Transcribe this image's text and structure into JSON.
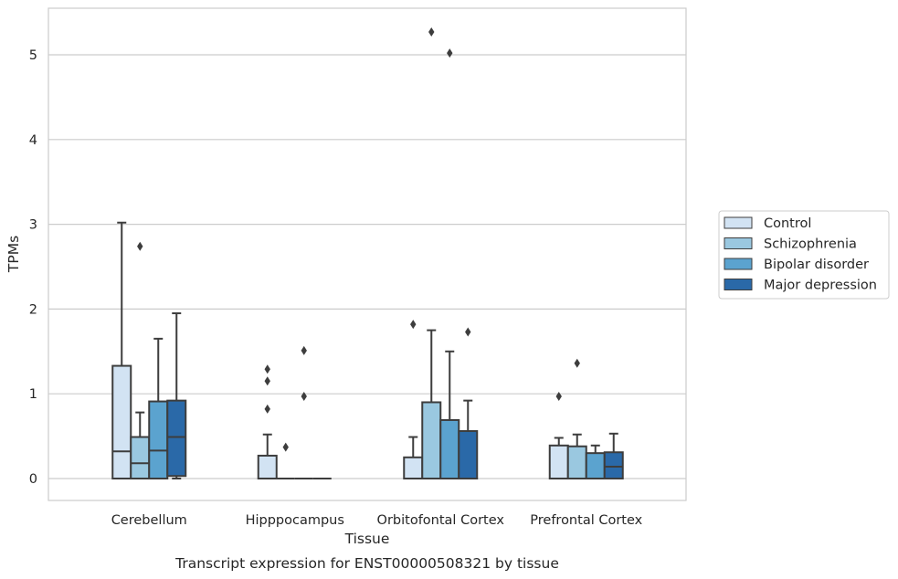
{
  "caption": "Transcript expression for ENST00000508321 by tissue",
  "chart_data": {
    "type": "box",
    "title": "",
    "xlabel": "Tissue",
    "ylabel": "TPMs",
    "categories": [
      "Cerebellum",
      "Hipppocampus",
      "Orbitofontal Cortex",
      "Prefrontal Cortex"
    ],
    "ylim": [
      -0.26,
      5.57
    ],
    "yticks": [
      0,
      1,
      2,
      3,
      4,
      5
    ],
    "grid": "horizontal",
    "legend_placement": "right",
    "series": [
      {
        "name": "Control",
        "color": "#d2e3f3",
        "boxes": [
          {
            "whislo": 0.0,
            "q1": 0.0,
            "med": 0.32,
            "q3": 1.33,
            "whishi": 3.02,
            "fliers": []
          },
          {
            "whislo": 0.0,
            "q1": 0.0,
            "med": 0.0,
            "q3": 0.27,
            "whishi": 0.52,
            "fliers": [
              0.82,
              1.15,
              1.29
            ]
          },
          {
            "whislo": 0.0,
            "q1": 0.0,
            "med": 0.0,
            "q3": 0.25,
            "whishi": 0.49,
            "fliers": [
              1.82
            ]
          },
          {
            "whislo": 0.0,
            "q1": 0.0,
            "med": 0.0,
            "q3": 0.39,
            "whishi": 0.48,
            "fliers": [
              0.97
            ]
          }
        ]
      },
      {
        "name": "Schizophrenia",
        "color": "#9ac8e0",
        "boxes": [
          {
            "whislo": 0.0,
            "q1": 0.0,
            "med": 0.18,
            "q3": 0.49,
            "whishi": 0.78,
            "fliers": [
              2.74
            ]
          },
          {
            "whislo": 0.0,
            "q1": 0.0,
            "med": 0.0,
            "q3": 0.0,
            "whishi": 0.0,
            "fliers": [
              0.37
            ]
          },
          {
            "whislo": 0.0,
            "q1": 0.0,
            "med": 0.0,
            "q3": 0.9,
            "whishi": 1.75,
            "fliers": [
              5.27
            ]
          },
          {
            "whislo": 0.0,
            "q1": 0.0,
            "med": 0.0,
            "q3": 0.38,
            "whishi": 0.52,
            "fliers": [
              1.36
            ]
          }
        ]
      },
      {
        "name": "Bipolar disorder",
        "color": "#5ba3cf",
        "boxes": [
          {
            "whislo": 0.0,
            "q1": 0.0,
            "med": 0.33,
            "q3": 0.91,
            "whishi": 1.65,
            "fliers": []
          },
          {
            "whislo": 0.0,
            "q1": 0.0,
            "med": 0.0,
            "q3": 0.0,
            "whishi": 0.0,
            "fliers": [
              0.97,
              1.51
            ]
          },
          {
            "whislo": 0.0,
            "q1": 0.0,
            "med": 0.0,
            "q3": 0.69,
            "whishi": 1.5,
            "fliers": [
              5.02
            ]
          },
          {
            "whislo": 0.0,
            "q1": 0.0,
            "med": 0.0,
            "q3": 0.3,
            "whishi": 0.39,
            "fliers": []
          }
        ]
      },
      {
        "name": "Major depression",
        "color": "#2a69a8",
        "boxes": [
          {
            "whislo": 0.0,
            "q1": 0.03,
            "med": 0.49,
            "q3": 0.92,
            "whishi": 1.95,
            "fliers": []
          },
          {
            "whislo": 0.0,
            "q1": 0.0,
            "med": 0.0,
            "q3": 0.0,
            "whishi": 0.0,
            "fliers": []
          },
          {
            "whislo": 0.0,
            "q1": 0.0,
            "med": 0.0,
            "q3": 0.56,
            "whishi": 0.92,
            "fliers": [
              1.73
            ]
          },
          {
            "whislo": 0.0,
            "q1": 0.0,
            "med": 0.14,
            "q3": 0.31,
            "whishi": 0.53,
            "fliers": []
          }
        ]
      }
    ]
  }
}
